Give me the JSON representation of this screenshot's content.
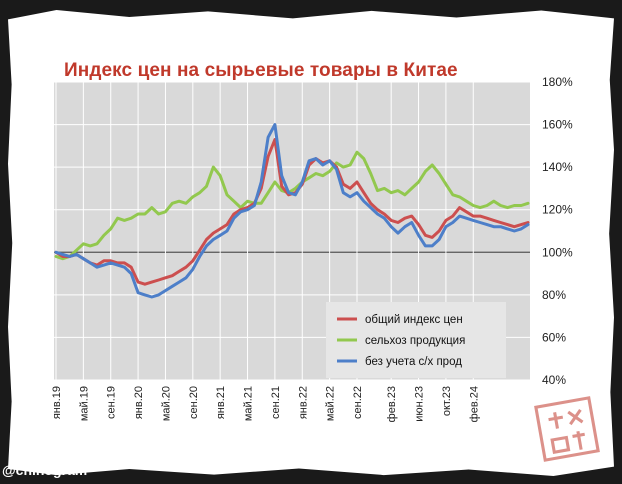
{
  "watermark": "@chinogram",
  "colors": {
    "overall": "#cc4f4f",
    "agri": "#92c84e",
    "exagri": "#4d7fc9",
    "plot_bg": "#d9d9d9",
    "title": "#c0392b"
  },
  "chart_data": {
    "type": "line",
    "title": "Индекс цен на сырьевые товары в Китае",
    "x_start": "2019-01",
    "x_tick_labels": [
      "янв.19",
      "май.19",
      "сен.19",
      "янв.20",
      "май.20",
      "сен.20",
      "янв.21",
      "май.21",
      "сен.21",
      "янв.22",
      "май.22",
      "сен.22",
      "фев.23",
      "июн.23",
      "окт.23",
      "фев.24"
    ],
    "y_tick_labels": [
      "40%",
      "60%",
      "80%",
      "100%",
      "120%",
      "140%",
      "160%",
      "180%"
    ],
    "ylim": [
      40,
      180
    ],
    "y_unit": "%",
    "grid": true,
    "legend_position": "bottom-right",
    "series": [
      {
        "name": "общий индекс цен",
        "color_key": "overall",
        "values": [
          100,
          98,
          98,
          99,
          97,
          95,
          94,
          96,
          96,
          95,
          95,
          93,
          86,
          85,
          86,
          87,
          88,
          89,
          91,
          93,
          96,
          101,
          106,
          109,
          111,
          113,
          118,
          120,
          121,
          123,
          130,
          145,
          153,
          131,
          127,
          128,
          132,
          141,
          144,
          142,
          143,
          140,
          132,
          130,
          133,
          128,
          123,
          120,
          118,
          115,
          114,
          116,
          117,
          113,
          108,
          107,
          110,
          115,
          117,
          121,
          119,
          117,
          117,
          116,
          115,
          114,
          113,
          112,
          113,
          114
        ]
      },
      {
        "name": "сельхоз продукция",
        "color_key": "agri",
        "values": [
          98,
          97,
          98,
          101,
          104,
          103,
          104,
          108,
          111,
          116,
          115,
          116,
          118,
          118,
          121,
          118,
          119,
          123,
          124,
          123,
          126,
          128,
          131,
          140,
          136,
          127,
          124,
          121,
          124,
          123,
          123,
          128,
          133,
          129,
          128,
          130,
          133,
          135,
          137,
          136,
          138,
          142,
          140,
          141,
          147,
          144,
          137,
          129,
          130,
          128,
          129,
          127,
          130,
          133,
          138,
          141,
          137,
          132,
          127,
          126,
          124,
          122,
          121,
          122,
          124,
          122,
          121,
          122,
          122,
          123
        ]
      },
      {
        "name": "без учета с/х прод",
        "color_key": "exagri",
        "values": [
          100,
          99,
          98,
          99,
          97,
          95,
          93,
          94,
          95,
          94,
          93,
          90,
          81,
          80,
          79,
          80,
          82,
          84,
          86,
          88,
          92,
          98,
          103,
          106,
          108,
          110,
          116,
          119,
          120,
          122,
          133,
          154,
          160,
          136,
          128,
          127,
          133,
          143,
          144,
          141,
          143,
          139,
          128,
          126,
          128,
          124,
          121,
          118,
          116,
          112,
          109,
          112,
          114,
          108,
          103,
          103,
          106,
          112,
          114,
          117,
          116,
          115,
          114,
          113,
          112,
          112,
          111,
          110,
          111,
          113
        ]
      }
    ]
  }
}
